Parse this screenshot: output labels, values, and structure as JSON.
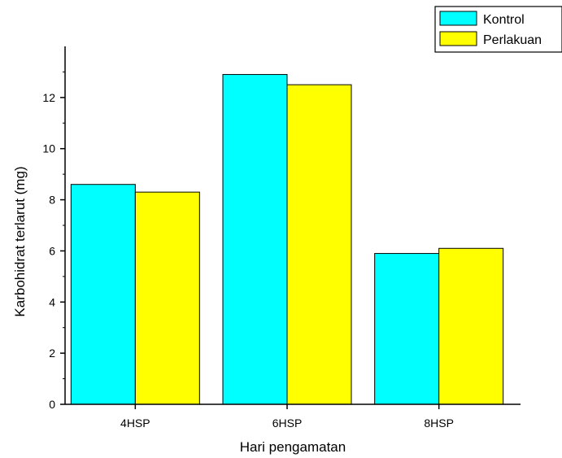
{
  "chart_data": {
    "type": "bar",
    "xlabel": "Hari pengamatan",
    "ylabel": "Karbohidrat terlarut (mg)",
    "categories": [
      "4HSP",
      "6HSP",
      "8HSP"
    ],
    "series": [
      {
        "name": "Kontrol",
        "values": [
          8.6,
          12.9,
          5.9
        ],
        "color": "#00ffff"
      },
      {
        "name": "Perlakuan",
        "values": [
          8.3,
          12.5,
          6.1
        ],
        "color": "#ffff00"
      }
    ],
    "ylim": [
      0,
      14
    ],
    "yticks": [
      "0",
      "2",
      "4",
      "6",
      "8",
      "10",
      "12"
    ],
    "grid": false,
    "legend_position": "top-right"
  }
}
